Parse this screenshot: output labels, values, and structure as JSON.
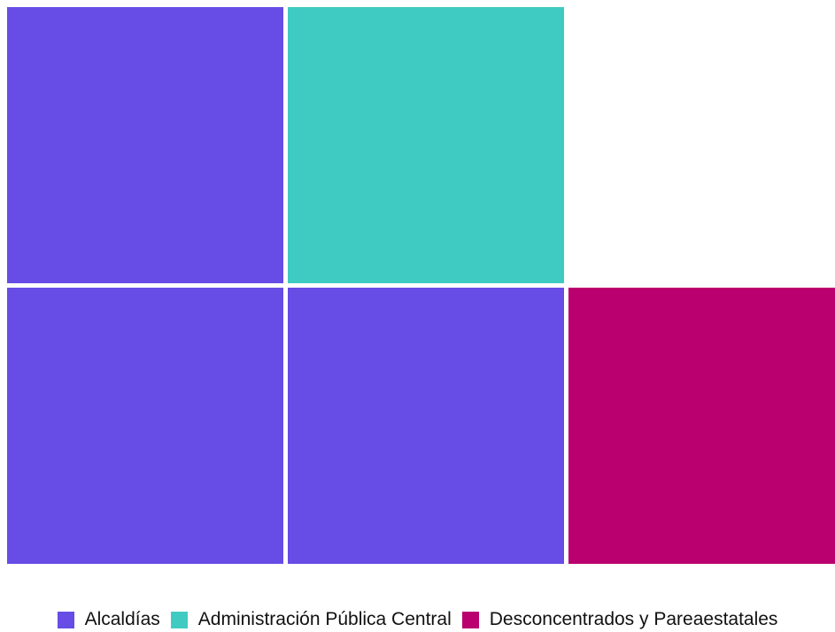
{
  "chart_data": {
    "type": "waffle",
    "grid": {
      "rows": 2,
      "cols": 3
    },
    "categories": [
      "Alcaldías",
      "Administración Pública Central",
      "Desconcentrados y Pareaestatales"
    ],
    "colors": {
      "Alcaldías": "#674ce5",
      "Administración Pública Central": "#40cbc2",
      "Desconcentrados y Pareaestatales": "#b9006e"
    },
    "values": [
      3,
      1,
      1
    ],
    "cells": [
      {
        "row": 0,
        "col": 0,
        "category": "Alcaldías"
      },
      {
        "row": 0,
        "col": 1,
        "category": "Administración Pública Central"
      },
      {
        "row": 1,
        "col": 0,
        "category": "Alcaldías"
      },
      {
        "row": 1,
        "col": 1,
        "category": "Alcaldías"
      },
      {
        "row": 1,
        "col": 2,
        "category": "Desconcentrados y Pareaestatales"
      }
    ],
    "legend_position": "bottom",
    "legend": [
      {
        "label": "Alcaldías",
        "color": "#674ce5"
      },
      {
        "label": "Administración Pública Central",
        "color": "#40cbc2"
      },
      {
        "label": "Desconcentrados y Pareaestatales",
        "color": "#b9006e"
      }
    ],
    "title": "",
    "xlabel": "",
    "ylabel": "",
    "grid_lines": false
  }
}
